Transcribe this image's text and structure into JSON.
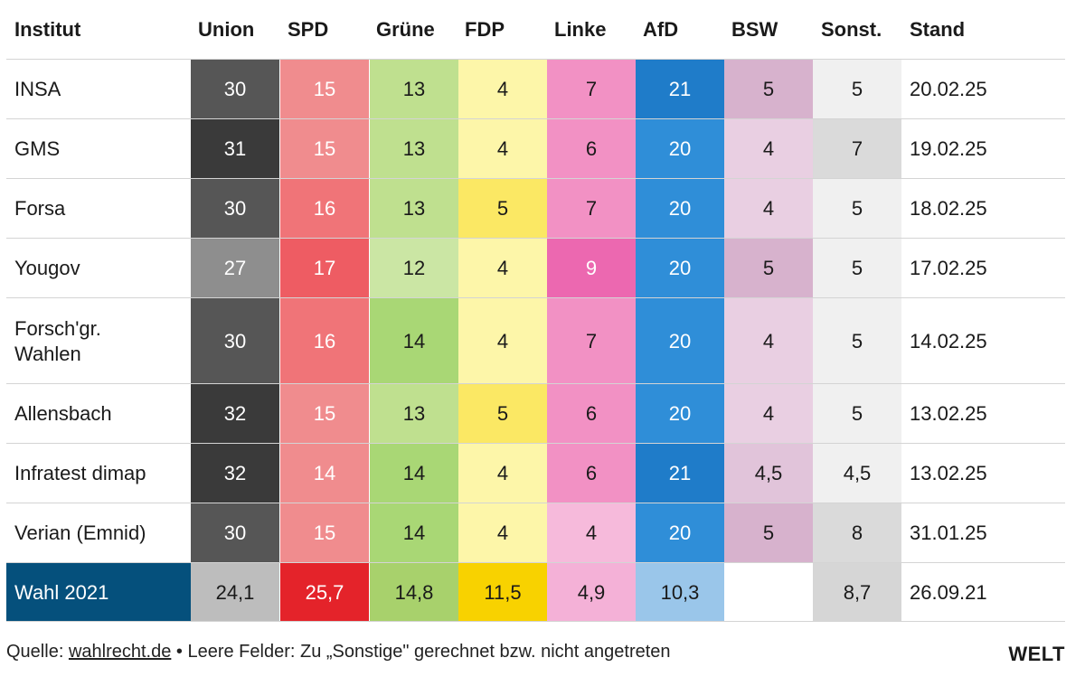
{
  "chart_data": {
    "type": "table",
    "columns": [
      "Institut",
      "Union",
      "SPD",
      "Grüne",
      "FDP",
      "Linke",
      "AfD",
      "BSW",
      "Sonst.",
      "Stand"
    ],
    "party_colors": {
      "Union": "#4d4d4d",
      "SPD": "#e8303a",
      "Grüne": "#a4d56a",
      "FDP": "#f9d800",
      "Linke": "#ec66ab",
      "AfD": "#1f7fcc",
      "BSW": "#c991b9",
      "Sonst.": "#c8c8c8"
    },
    "rows": [
      {
        "institut": "INSA",
        "values": [
          "30",
          "15",
          "13",
          "4",
          "7",
          "21",
          "5",
          "5"
        ],
        "stand": "20.02.25"
      },
      {
        "institut": "GMS",
        "values": [
          "31",
          "15",
          "13",
          "4",
          "6",
          "20",
          "4",
          "7"
        ],
        "stand": "19.02.25"
      },
      {
        "institut": "Forsa",
        "values": [
          "30",
          "16",
          "13",
          "5",
          "7",
          "20",
          "4",
          "5"
        ],
        "stand": "18.02.25"
      },
      {
        "institut": "Yougov",
        "values": [
          "27",
          "17",
          "12",
          "4",
          "9",
          "20",
          "5",
          "5"
        ],
        "stand": "17.02.25"
      },
      {
        "institut": "Forsch'gr.\nWahlen",
        "values": [
          "30",
          "16",
          "14",
          "4",
          "7",
          "20",
          "4",
          "5"
        ],
        "stand": "14.02.25"
      },
      {
        "institut": "Allensbach",
        "values": [
          "32",
          "15",
          "13",
          "5",
          "6",
          "20",
          "4",
          "5"
        ],
        "stand": "13.02.25"
      },
      {
        "institut": "Infratest dimap",
        "values": [
          "32",
          "14",
          "14",
          "4",
          "6",
          "21",
          "4,5",
          "4,5"
        ],
        "stand": "13.02.25"
      },
      {
        "institut": "Verian (Emnid)",
        "values": [
          "30",
          "15",
          "14",
          "4",
          "4",
          "20",
          "5",
          "8"
        ],
        "stand": "31.01.25"
      }
    ],
    "election_row": {
      "institut": "Wahl 2021",
      "values": [
        "24,1",
        "25,7",
        "14,8",
        "11,5",
        "4,9",
        "10,3",
        "",
        "8,7"
      ],
      "stand": "26.09.21"
    }
  },
  "footer": {
    "source_prefix": "Quelle: ",
    "source_link": "wahlrecht.de",
    "note": " • Leere Felder: Zu „Sonstige\" gerechnet bzw. nicht angetreten"
  },
  "logo": "WELT"
}
